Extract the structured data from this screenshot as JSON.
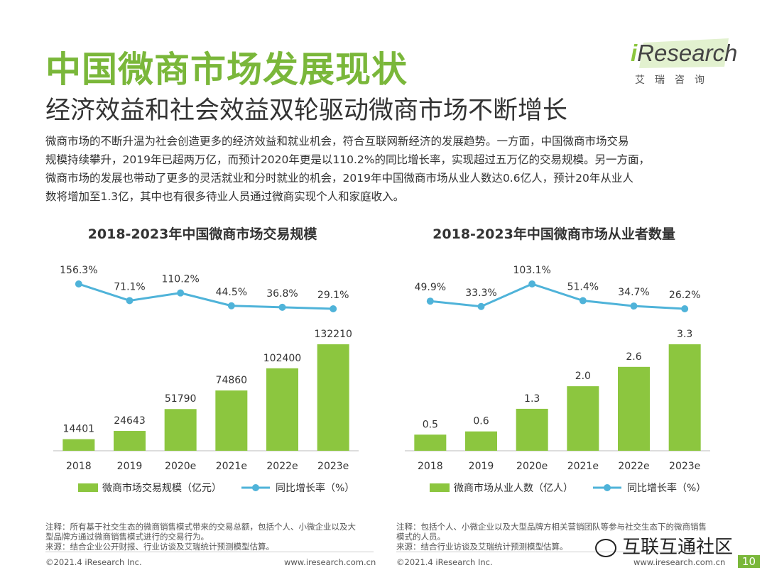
{
  "header": {
    "title": "中国微商市场发展现状",
    "subtitle": "经济效益和社会效益双轮驱动微商市场不断增长",
    "logo_text_i": "i",
    "logo_text_rest": "Research",
    "logo_sub": "艾瑞咨询"
  },
  "intro": [
    "微商市场的不断升温为社会创造更多的经济效益和就业机会，符合互联网新经济的发展趋势。一方面，中国微商市场交易",
    "规模持续攀升，2019年已超两万亿，而预计2020年更是以110.2%的同比增长率，实现超过五万亿的交易规模。另一方面，",
    "微商市场的发展也带动了更多的灵活就业和分时就业的机会，2019年中国微商市场从业人数达0.6亿人，预计20年从业人",
    "数将增加至1.3亿，其中也有很多待业人员通过微商实现个人和家庭收入。"
  ],
  "colors": {
    "bar": "#8cc63f",
    "line": "#4fb3d9",
    "title": "#7ab73a"
  },
  "chart_data": [
    {
      "type": "bar",
      "title": "2018-2023年中国微商市场交易规模",
      "categories": [
        "2018",
        "2019",
        "2020e",
        "2021e",
        "2022e",
        "2023e"
      ],
      "series": [
        {
          "name": "微商市场交易规模（亿元）",
          "type": "bar",
          "values": [
            14401,
            24643,
            51790,
            74860,
            102400,
            132210
          ],
          "labels": [
            "14401",
            "24643",
            "51790",
            "74860",
            "102400",
            "132210"
          ]
        },
        {
          "name": "同比增长率（%）",
          "type": "line",
          "values": [
            156.3,
            71.1,
            110.2,
            44.5,
            36.8,
            29.1
          ],
          "labels": [
            "156.3%",
            "71.1%",
            "110.2%",
            "44.5%",
            "36.8%",
            "29.1%"
          ]
        }
      ],
      "legend": "bottom"
    },
    {
      "type": "bar",
      "title": "2018-2023年中国微商市场从业者数量",
      "categories": [
        "2018",
        "2019",
        "2020e",
        "2021e",
        "2022e",
        "2023e"
      ],
      "series": [
        {
          "name": "微商市场从业人数（亿人）",
          "type": "bar",
          "values": [
            0.5,
            0.6,
            1.3,
            2.0,
            2.6,
            3.3
          ],
          "labels": [
            "0.5",
            "0.6",
            "1.3",
            "2.0",
            "2.6",
            "3.3"
          ]
        },
        {
          "name": "同比增长率（%）",
          "type": "line",
          "values": [
            49.9,
            33.3,
            103.1,
            51.4,
            34.7,
            26.2
          ],
          "labels": [
            "49.9%",
            "33.3%",
            "103.1%",
            "51.4%",
            "34.7%",
            "26.2%"
          ]
        }
      ],
      "legend": "bottom"
    }
  ],
  "notes": {
    "left": [
      "注释：所有基于社交生态的微商销售模式带来的交易总额，包括个人、小微企业以及大",
      "型品牌方通过微商销售模式进行的交易行为。",
      "来源：结合企业公开财报、行业访谈及艾瑞统计预测模型估算。"
    ],
    "right": [
      "注释：包括个人、小微企业以及大型品牌方相关营销团队等参与社交生态下的微商销售",
      "模式的人员。",
      "来源：结合行业访谈及艾瑞统计预测模型估算。"
    ]
  },
  "footer": {
    "left_copyright": "©2021.4 iResearch Inc.",
    "left_url": "www.iresearch.com.cn",
    "right_copyright": "©2021.4 iResearch Inc.",
    "right_url": "www.iresearch.com.cn",
    "watermark": "互联互通社区",
    "page_number": "10"
  }
}
